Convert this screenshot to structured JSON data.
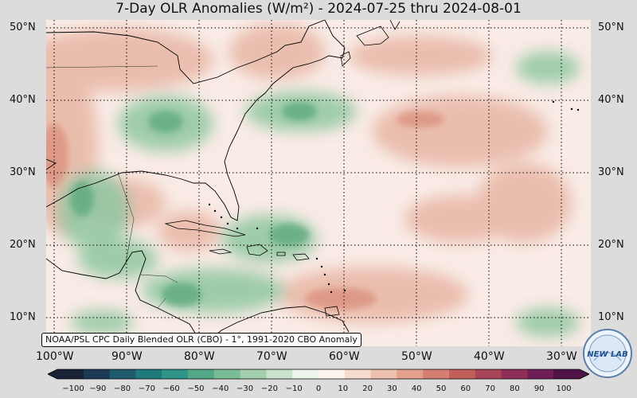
{
  "title": "7-Day OLR Anomalies (W/m²) - 2024-07-25 thru 2024-08-01",
  "lat_labels": [
    "50°N",
    "40°N",
    "30°N",
    "20°N",
    "10°N"
  ],
  "lon_labels": [
    "100°W",
    "90°W",
    "80°W",
    "70°W",
    "60°W",
    "50°W",
    "40°W",
    "30°W"
  ],
  "credit": "NOAA/PSL CPC Daily Blended OLR (CBO) - 1°, 1991-2020 CBO Anomaly",
  "colorbar": {
    "ticks": [
      "−100",
      "−90",
      "−80",
      "−70",
      "−60",
      "−50",
      "−40",
      "−30",
      "−20",
      "−10",
      "0",
      "10",
      "20",
      "30",
      "40",
      "50",
      "60",
      "70",
      "80",
      "90",
      "100"
    ],
    "colors": [
      "#1a2238",
      "#1d3a55",
      "#1f5a6d",
      "#1f7a7c",
      "#2e9487",
      "#52a886",
      "#7abc95",
      "#a3cfae",
      "#c8e2cc",
      "#ecf4ec",
      "#fdf3ee",
      "#f6dccf",
      "#eec1ae",
      "#e3a18d",
      "#d47f70",
      "#c25f5b",
      "#a84457",
      "#8d2d58",
      "#6f1e55",
      "#4e1447"
    ]
  },
  "logo_text": "NEW LAB",
  "colors": {
    "background": "#dcdcdc",
    "ocean_neutral": "#f9ebe6",
    "positive_anomaly": "#e9b9a6",
    "negative_anomaly": "#7fbf95"
  }
}
